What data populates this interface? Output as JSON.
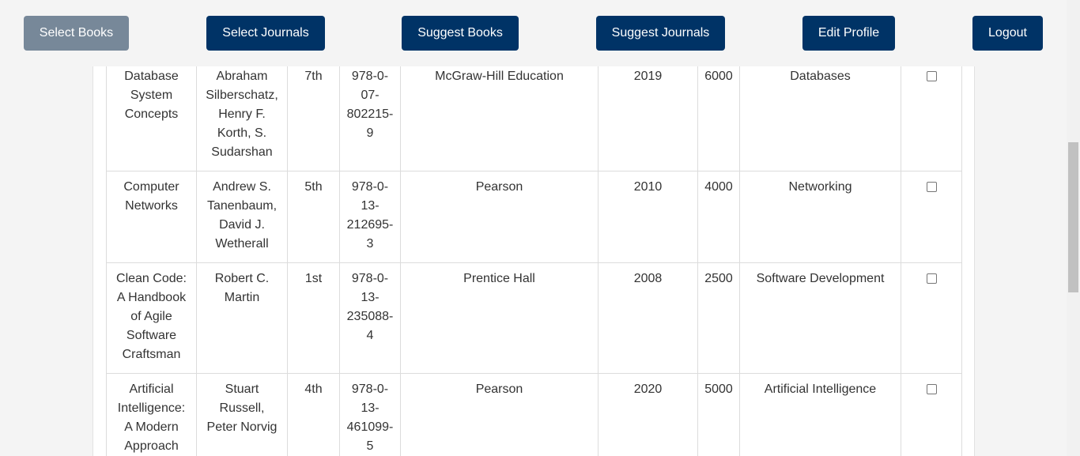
{
  "nav": {
    "select_books": "Select Books",
    "select_journals": "Select Journals",
    "suggest_books": "Suggest Books",
    "suggest_journals": "Suggest Journals",
    "edit_profile": "Edit Profile",
    "logout": "Logout"
  },
  "colors": {
    "nav_button": "#003366",
    "nav_button_active": "#778899"
  },
  "books": [
    {
      "title": "Database System Concepts",
      "authors": "Abraham Silberschatz, Henry F. Korth, S. Sudarshan",
      "edition": "7th",
      "isbn": "978-0-07-802215-9",
      "publisher": "McGraw-Hill Education",
      "year": "2019",
      "price": "6000",
      "category": "Databases",
      "selected": false
    },
    {
      "title": "Computer Networks",
      "authors": "Andrew S. Tanenbaum, David J. Wetherall",
      "edition": "5th",
      "isbn": "978-0-13-212695-3",
      "publisher": "Pearson",
      "year": "2010",
      "price": "4000",
      "category": "Networking",
      "selected": false
    },
    {
      "title": "Clean Code: A Handbook of Agile Software Craftsman",
      "authors": "Robert C. Martin",
      "edition": "1st",
      "isbn": "978-0-13-235088-4",
      "publisher": "Prentice Hall",
      "year": "2008",
      "price": "2500",
      "category": "Software Development",
      "selected": false
    },
    {
      "title": "Artificial Intelligence: A Modern Approach",
      "authors": "Stuart Russell, Peter Norvig",
      "edition": "4th",
      "isbn": "978-0-13-461099-5",
      "publisher": "Pearson",
      "year": "2020",
      "price": "5000",
      "category": "Artificial Intelligence",
      "selected": false
    }
  ]
}
